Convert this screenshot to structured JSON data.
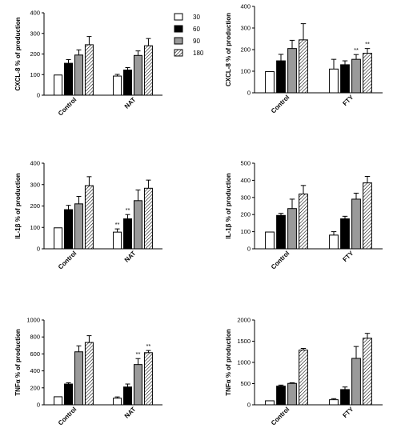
{
  "legend": [
    "30",
    "60",
    "90",
    "180"
  ],
  "chart_data": [
    {
      "type": "bar",
      "ylabel": "CXCL-8 % of production",
      "categories": [
        "Control",
        "NAT"
      ],
      "ylim": [
        0,
        400
      ],
      "yticks": [
        "0",
        "100",
        "200",
        "300",
        "400"
      ],
      "series": [
        {
          "name": "30",
          "values": [
            98,
            93
          ],
          "errors": [
            0,
            8
          ],
          "sig": [
            "",
            ""
          ]
        },
        {
          "name": "60",
          "values": [
            155,
            122
          ],
          "errors": [
            18,
            12
          ],
          "sig": [
            "",
            ""
          ]
        },
        {
          "name": "90",
          "values": [
            195,
            193
          ],
          "errors": [
            25,
            22
          ],
          "sig": [
            "",
            ""
          ]
        },
        {
          "name": "180",
          "values": [
            245,
            240
          ],
          "errors": [
            40,
            35
          ],
          "sig": [
            "",
            ""
          ]
        }
      ]
    },
    {
      "type": "bar",
      "ylabel": "CXCL-8 % of production",
      "categories": [
        "Control",
        "FTY"
      ],
      "ylim": [
        0,
        400
      ],
      "yticks": [
        "0",
        "100",
        "200",
        "300",
        "400"
      ],
      "series": [
        {
          "name": "30",
          "values": [
            98,
            110
          ],
          "errors": [
            0,
            45
          ],
          "sig": [
            "",
            ""
          ]
        },
        {
          "name": "60",
          "values": [
            148,
            130
          ],
          "errors": [
            30,
            18
          ],
          "sig": [
            "",
            ""
          ]
        },
        {
          "name": "90",
          "values": [
            205,
            155
          ],
          "errors": [
            38,
            22
          ],
          "sig": [
            "",
            "**"
          ]
        },
        {
          "name": "180",
          "values": [
            245,
            183
          ],
          "errors": [
            75,
            22
          ],
          "sig": [
            "",
            "**"
          ]
        }
      ]
    },
    {
      "type": "bar",
      "ylabel": "IL-1β % of production",
      "categories": [
        "Control",
        "NAT"
      ],
      "ylim": [
        0,
        400
      ],
      "yticks": [
        "0",
        "100",
        "200",
        "300",
        "400"
      ],
      "series": [
        {
          "name": "30",
          "values": [
            98,
            78
          ],
          "errors": [
            0,
            15
          ],
          "sig": [
            "",
            "**"
          ]
        },
        {
          "name": "60",
          "values": [
            183,
            140
          ],
          "errors": [
            20,
            20
          ],
          "sig": [
            "",
            "**"
          ]
        },
        {
          "name": "90",
          "values": [
            210,
            225
          ],
          "errors": [
            35,
            50
          ],
          "sig": [
            "",
            ""
          ]
        },
        {
          "name": "180",
          "values": [
            295,
            283
          ],
          "errors": [
            42,
            38
          ],
          "sig": [
            "",
            ""
          ]
        }
      ]
    },
    {
      "type": "bar",
      "ylabel": "IL-1β % of production",
      "categories": [
        "Control",
        "FTY"
      ],
      "ylim": [
        0,
        500
      ],
      "yticks": [
        "0",
        "100",
        "200",
        "300",
        "400",
        "500"
      ],
      "series": [
        {
          "name": "30",
          "values": [
            98,
            80
          ],
          "errors": [
            0,
            20
          ],
          "sig": [
            "",
            ""
          ]
        },
        {
          "name": "60",
          "values": [
            195,
            175
          ],
          "errors": [
            12,
            15
          ],
          "sig": [
            "",
            ""
          ]
        },
        {
          "name": "90",
          "values": [
            235,
            290
          ],
          "errors": [
            55,
            35
          ],
          "sig": [
            "",
            ""
          ]
        },
        {
          "name": "180",
          "values": [
            320,
            385
          ],
          "errors": [
            50,
            38
          ],
          "sig": [
            "",
            ""
          ]
        }
      ]
    },
    {
      "type": "bar",
      "ylabel": "TNFα % of production",
      "categories": [
        "Control",
        "NAT"
      ],
      "ylim": [
        0,
        1000
      ],
      "yticks": [
        "0",
        "200",
        "400",
        "600",
        "800",
        "1000"
      ],
      "series": [
        {
          "name": "30",
          "values": [
            95,
            78
          ],
          "errors": [
            0,
            15
          ],
          "sig": [
            "",
            ""
          ]
        },
        {
          "name": "60",
          "values": [
            245,
            210
          ],
          "errors": [
            15,
            35
          ],
          "sig": [
            "",
            ""
          ]
        },
        {
          "name": "90",
          "values": [
            625,
            475
          ],
          "errors": [
            70,
            70
          ],
          "sig": [
            "",
            "**"
          ]
        },
        {
          "name": "180",
          "values": [
            735,
            615
          ],
          "errors": [
            80,
            25
          ],
          "sig": [
            "",
            "**"
          ]
        }
      ]
    },
    {
      "type": "bar",
      "ylabel": "TNFα % of production",
      "categories": [
        "Control",
        "FTY"
      ],
      "ylim": [
        0,
        2000
      ],
      "yticks": [
        "0",
        "500",
        "1000",
        "1500",
        "2000"
      ],
      "series": [
        {
          "name": "30",
          "values": [
            95,
            120
          ],
          "errors": [
            0,
            25
          ],
          "sig": [
            "",
            ""
          ]
        },
        {
          "name": "60",
          "values": [
            440,
            360
          ],
          "errors": [
            25,
            60
          ],
          "sig": [
            "",
            ""
          ]
        },
        {
          "name": "90",
          "values": [
            505,
            1095
          ],
          "errors": [
            15,
            280
          ],
          "sig": [
            "",
            ""
          ]
        },
        {
          "name": "180",
          "values": [
            1290,
            1570
          ],
          "errors": [
            40,
            115
          ],
          "sig": [
            "",
            ""
          ]
        }
      ]
    }
  ]
}
